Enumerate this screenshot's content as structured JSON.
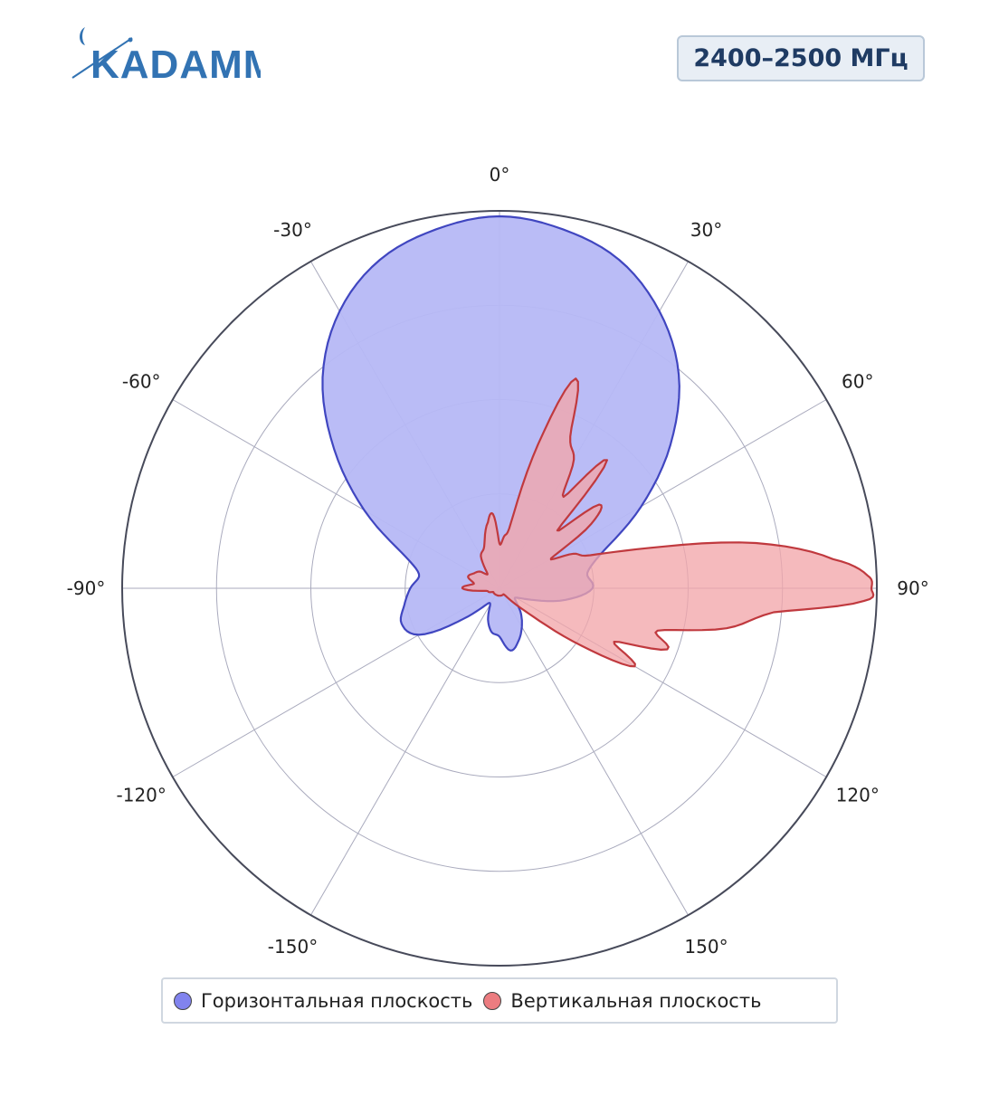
{
  "header": {
    "logo_text": "KADAMM",
    "band_label": "2400–2500 МГц"
  },
  "colors": {
    "horizontal_fill": "#b6b8f6",
    "horizontal_line": "#4046c0",
    "vertical_fill": "#f2a6aa",
    "vertical_line": "#c0393e",
    "logo_blue": "#3273b3",
    "grid": "#a9aabd",
    "outer_ring": "#474a5a"
  },
  "chart_data": {
    "type": "polar",
    "angular_ticks": [
      "0°",
      "30°",
      "60°",
      "90°",
      "120°",
      "150°",
      "-150°",
      "-120°",
      "-90°",
      "-60°",
      "-30°"
    ],
    "radial_rings": 4,
    "series": [
      {
        "name": "Горизонтальная плоскость",
        "angles": [
          0,
          10,
          20,
          30,
          40,
          50,
          60,
          70,
          80,
          90,
          100,
          110,
          120,
          130,
          140,
          150,
          160,
          170,
          180,
          -170,
          -160,
          -150,
          -140,
          -130,
          -120,
          -110,
          -100,
          -90,
          -80,
          -70,
          -60,
          -50,
          -40,
          -30,
          -20,
          -10
        ],
        "values": [
          1.0,
          0.98,
          0.94,
          0.86,
          0.75,
          0.6,
          0.44,
          0.3,
          0.24,
          0.25,
          0.18,
          0.09,
          0.05,
          0.06,
          0.09,
          0.12,
          0.15,
          0.17,
          0.13,
          0.12,
          0.09,
          0.05,
          0.06,
          0.13,
          0.25,
          0.28,
          0.26,
          0.24,
          0.22,
          0.28,
          0.42,
          0.58,
          0.74,
          0.86,
          0.94,
          0.98
        ]
      },
      {
        "name": "Вертикальная плоскость",
        "angles": [
          0,
          5,
          10,
          15,
          20,
          25,
          30,
          35,
          40,
          45,
          50,
          55,
          60,
          65,
          70,
          75,
          80,
          85,
          88,
          90,
          92,
          95,
          100,
          105,
          110,
          115,
          120,
          125,
          130,
          135,
          140,
          145,
          150,
          160,
          170,
          180,
          -170,
          -160,
          -150,
          -140,
          -130,
          -120,
          -110,
          -100,
          -90,
          -80,
          -70,
          -60,
          -50,
          -40,
          -30,
          -20,
          -10,
          -5
        ],
        "values": [
          0.12,
          0.14,
          0.18,
          0.4,
          0.6,
          0.45,
          0.4,
          0.3,
          0.45,
          0.22,
          0.35,
          0.3,
          0.16,
          0.22,
          0.26,
          0.42,
          0.7,
          0.9,
          0.99,
          1.0,
          0.98,
          0.74,
          0.62,
          0.44,
          0.48,
          0.34,
          0.42,
          0.27,
          0.12,
          0.06,
          0.03,
          0.02,
          0.02,
          0.02,
          0.02,
          0.02,
          0.02,
          0.02,
          0.02,
          0.02,
          0.02,
          0.02,
          0.03,
          0.04,
          0.1,
          0.07,
          0.09,
          0.08,
          0.07,
          0.05,
          0.1,
          0.12,
          0.18,
          0.2
        ]
      }
    ]
  },
  "legend": {
    "horizontal_label": "Горизонтальная плоскость",
    "vertical_label": "Вертикальная плоскость"
  }
}
